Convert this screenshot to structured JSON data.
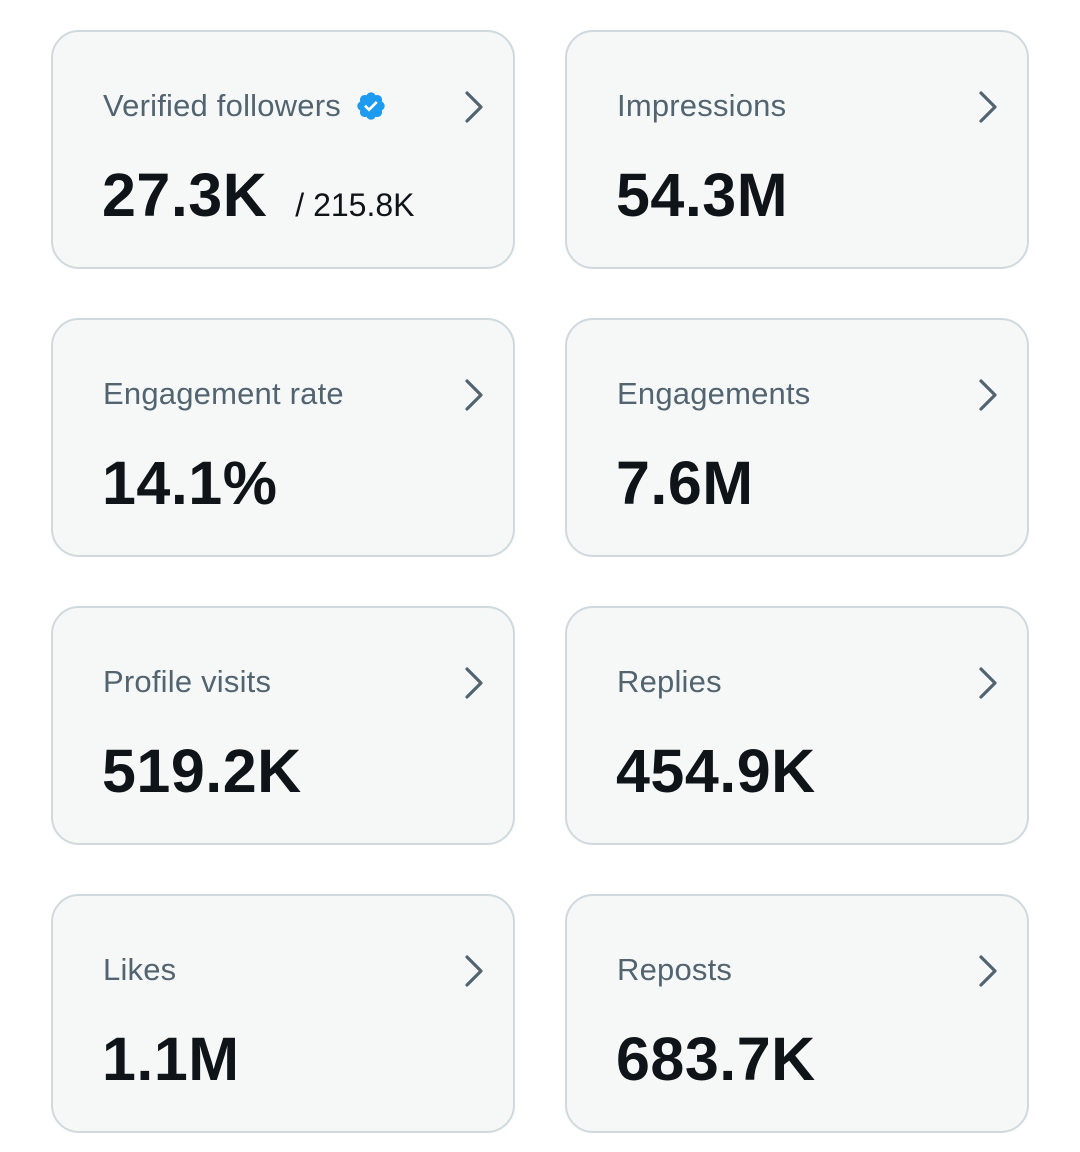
{
  "colors": {
    "card_background": "#f6f8f8",
    "card_border": "#cfd9de",
    "label": "#536471",
    "value": "#0f1419",
    "verified_badge": "#1d9bf0",
    "chevron": "#536471"
  },
  "icons": {
    "verified": "verified-badge-icon",
    "chevron": "chevron-right-icon"
  },
  "cards": [
    {
      "label": "Verified followers",
      "value": "27.3K",
      "sub": "/ 215.8K",
      "verified": true
    },
    {
      "label": "Impressions",
      "value": "54.3M"
    },
    {
      "label": "Engagement rate",
      "value": "14.1%"
    },
    {
      "label": "Engagements",
      "value": "7.6M"
    },
    {
      "label": "Profile visits",
      "value": "519.2K"
    },
    {
      "label": "Replies",
      "value": "454.9K"
    },
    {
      "label": "Likes",
      "value": "1.1M"
    },
    {
      "label": "Reposts",
      "value": "683.7K"
    }
  ]
}
